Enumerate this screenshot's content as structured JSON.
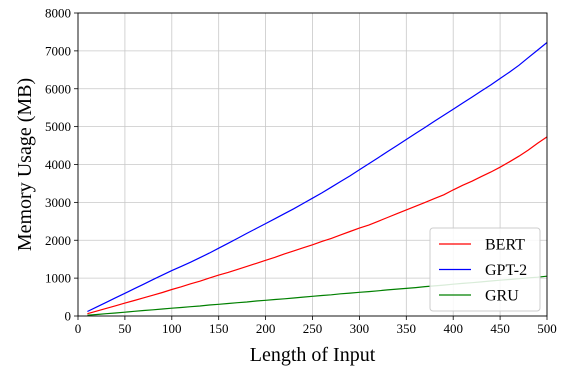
{
  "chart_data": {
    "type": "line",
    "xlabel": "Length of Input",
    "ylabel": "Memory Usage (MB)",
    "xlim": [
      0,
      500
    ],
    "ylim": [
      0,
      8000
    ],
    "xticks": [
      0,
      50,
      100,
      150,
      200,
      250,
      300,
      350,
      400,
      450,
      500
    ],
    "yticks": [
      0,
      1000,
      2000,
      3000,
      4000,
      5000,
      6000,
      7000,
      8000
    ],
    "grid": true,
    "legend_position": "lower-right",
    "x": [
      10,
      20,
      30,
      40,
      50,
      60,
      70,
      80,
      90,
      100,
      110,
      120,
      130,
      140,
      150,
      160,
      170,
      180,
      190,
      200,
      210,
      220,
      230,
      240,
      250,
      260,
      270,
      280,
      290,
      300,
      310,
      320,
      330,
      340,
      350,
      360,
      370,
      380,
      390,
      400,
      410,
      420,
      430,
      440,
      450,
      460,
      470,
      480,
      490,
      500
    ],
    "series": [
      {
        "name": "BERT",
        "color": "#ff0000",
        "values": [
          60,
          130,
          200,
          270,
          340,
          410,
          480,
          550,
          620,
          700,
          770,
          850,
          920,
          1000,
          1080,
          1150,
          1230,
          1310,
          1390,
          1470,
          1550,
          1640,
          1720,
          1800,
          1880,
          1970,
          2050,
          2140,
          2230,
          2320,
          2400,
          2500,
          2600,
          2700,
          2800,
          2900,
          3000,
          3100,
          3200,
          3330,
          3450,
          3560,
          3680,
          3800,
          3930,
          4070,
          4220,
          4380,
          4560,
          4730
        ]
      },
      {
        "name": "GPT-2",
        "color": "#0000ff",
        "values": [
          120,
          240,
          360,
          480,
          600,
          720,
          840,
          960,
          1080,
          1200,
          1310,
          1420,
          1540,
          1660,
          1790,
          1920,
          2050,
          2180,
          2310,
          2440,
          2570,
          2700,
          2830,
          2970,
          3110,
          3250,
          3400,
          3550,
          3700,
          3860,
          4020,
          4180,
          4340,
          4500,
          4660,
          4820,
          4980,
          5140,
          5300,
          5460,
          5620,
          5780,
          5940,
          6100,
          6270,
          6440,
          6620,
          6820,
          7020,
          7220
        ]
      },
      {
        "name": "GRU",
        "color": "#008000",
        "values": [
          20,
          40,
          60,
          80,
          100,
          125,
          145,
          165,
          185,
          205,
          225,
          245,
          265,
          290,
          310,
          330,
          350,
          370,
          395,
          415,
          435,
          455,
          475,
          500,
          520,
          540,
          560,
          585,
          605,
          625,
          645,
          665,
          690,
          710,
          730,
          750,
          775,
          795,
          815,
          840,
          860,
          880,
          900,
          925,
          945,
          965,
          985,
          1005,
          1025,
          1050
        ]
      }
    ]
  }
}
